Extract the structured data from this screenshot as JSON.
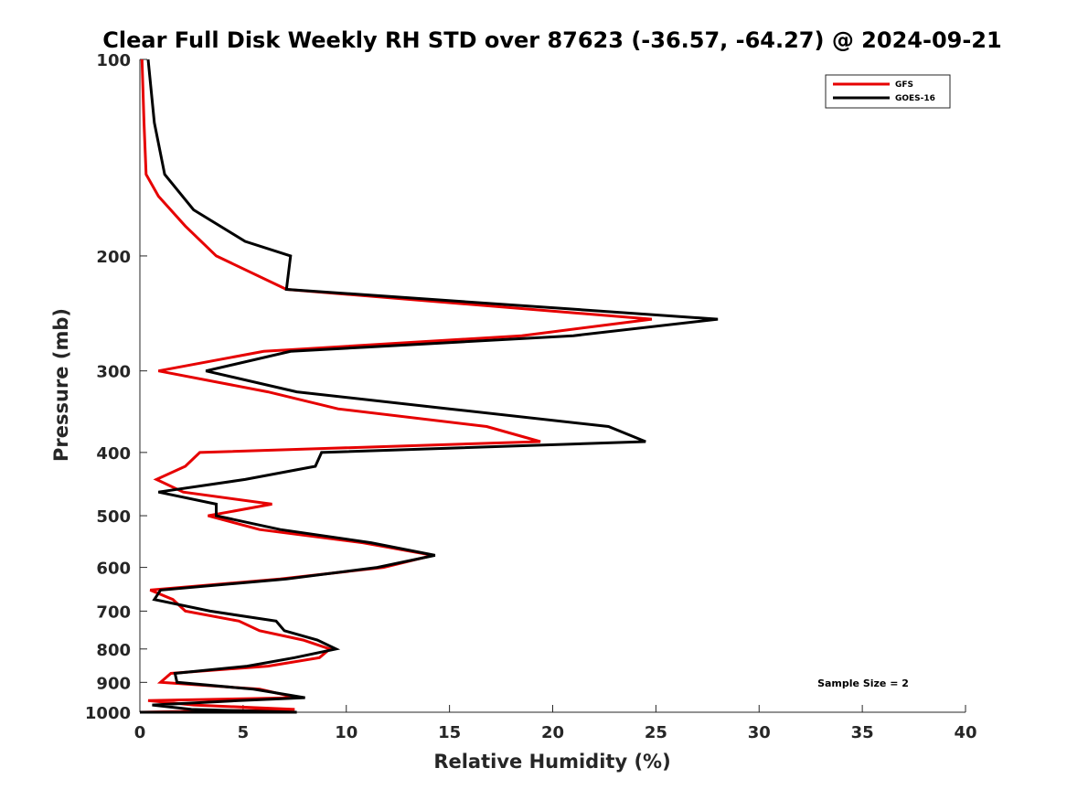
{
  "chart_data": {
    "type": "line",
    "title": "Clear Full Disk Weekly RH STD over 87623 (-36.57, -64.27) @ 2024-09-21",
    "xlabel": "Relative Humidity (%)",
    "ylabel": "Pressure (mb)",
    "xlim": [
      0,
      40
    ],
    "ylim": [
      100,
      1000
    ],
    "y_scale": "log",
    "y_reversed": true,
    "x_ticks": [
      0,
      5,
      10,
      15,
      20,
      25,
      30,
      35,
      40
    ],
    "y_ticks": [
      100,
      200,
      300,
      400,
      500,
      600,
      700,
      800,
      900,
      1000
    ],
    "grid": false,
    "legend_position": "top-right",
    "annotation": "Sample Size = 2",
    "series": [
      {
        "name": "GFS",
        "color": "#e60000",
        "points": [
          [
            0.1,
            100
          ],
          [
            0.2,
            125
          ],
          [
            0.3,
            150
          ],
          [
            0.9,
            162
          ],
          [
            2.2,
            180
          ],
          [
            3.7,
            200
          ],
          [
            7.1,
            225
          ],
          [
            24.8,
            250
          ],
          [
            18.5,
            265
          ],
          [
            6.0,
            280
          ],
          [
            0.9,
            300
          ],
          [
            6.2,
            323
          ],
          [
            9.6,
            343
          ],
          [
            16.8,
            365
          ],
          [
            19.4,
            385
          ],
          [
            2.9,
            400
          ],
          [
            2.2,
            420
          ],
          [
            0.8,
            440
          ],
          [
            2.1,
            460
          ],
          [
            6.4,
            480
          ],
          [
            3.3,
            500
          ],
          [
            5.8,
            525
          ],
          [
            10.8,
            550
          ],
          [
            14.2,
            575
          ],
          [
            11.8,
            600
          ],
          [
            6.8,
            625
          ],
          [
            0.5,
            650
          ],
          [
            1.6,
            672
          ],
          [
            2.2,
            700
          ],
          [
            4.8,
            725
          ],
          [
            5.8,
            750
          ],
          [
            7.9,
            775
          ],
          [
            9.2,
            800
          ],
          [
            8.7,
            825
          ],
          [
            6.2,
            850
          ],
          [
            1.5,
            872
          ],
          [
            1.0,
            900
          ],
          [
            5.8,
            922
          ],
          [
            7.6,
            950
          ],
          [
            0.4,
            960
          ],
          [
            2.6,
            975
          ],
          [
            7.5,
            990
          ],
          [
            0.0,
            1000
          ]
        ]
      },
      {
        "name": "GOES-16",
        "color": "#000000",
        "points": [
          [
            0.4,
            100
          ],
          [
            0.7,
            125
          ],
          [
            1.2,
            150
          ],
          [
            2.6,
            170
          ],
          [
            5.1,
            190
          ],
          [
            7.3,
            200
          ],
          [
            7.1,
            225
          ],
          [
            28.0,
            250
          ],
          [
            21.0,
            265
          ],
          [
            7.3,
            280
          ],
          [
            3.2,
            300
          ],
          [
            7.6,
            323
          ],
          [
            15.0,
            343
          ],
          [
            22.7,
            365
          ],
          [
            24.5,
            385
          ],
          [
            8.8,
            400
          ],
          [
            8.5,
            420
          ],
          [
            5.1,
            440
          ],
          [
            0.9,
            460
          ],
          [
            3.7,
            480
          ],
          [
            3.7,
            500
          ],
          [
            6.8,
            525
          ],
          [
            11.2,
            550
          ],
          [
            14.3,
            575
          ],
          [
            11.5,
            600
          ],
          [
            7.1,
            625
          ],
          [
            1.0,
            650
          ],
          [
            0.7,
            672
          ],
          [
            3.4,
            700
          ],
          [
            6.6,
            725
          ],
          [
            7.0,
            750
          ],
          [
            8.6,
            775
          ],
          [
            9.5,
            800
          ],
          [
            7.5,
            825
          ],
          [
            5.2,
            850
          ],
          [
            1.7,
            872
          ],
          [
            1.8,
            900
          ],
          [
            5.5,
            922
          ],
          [
            8.0,
            950
          ],
          [
            4.8,
            960
          ],
          [
            0.6,
            975
          ],
          [
            2.5,
            990
          ],
          [
            7.6,
            1000
          ],
          [
            0.0,
            1000
          ]
        ]
      }
    ]
  }
}
